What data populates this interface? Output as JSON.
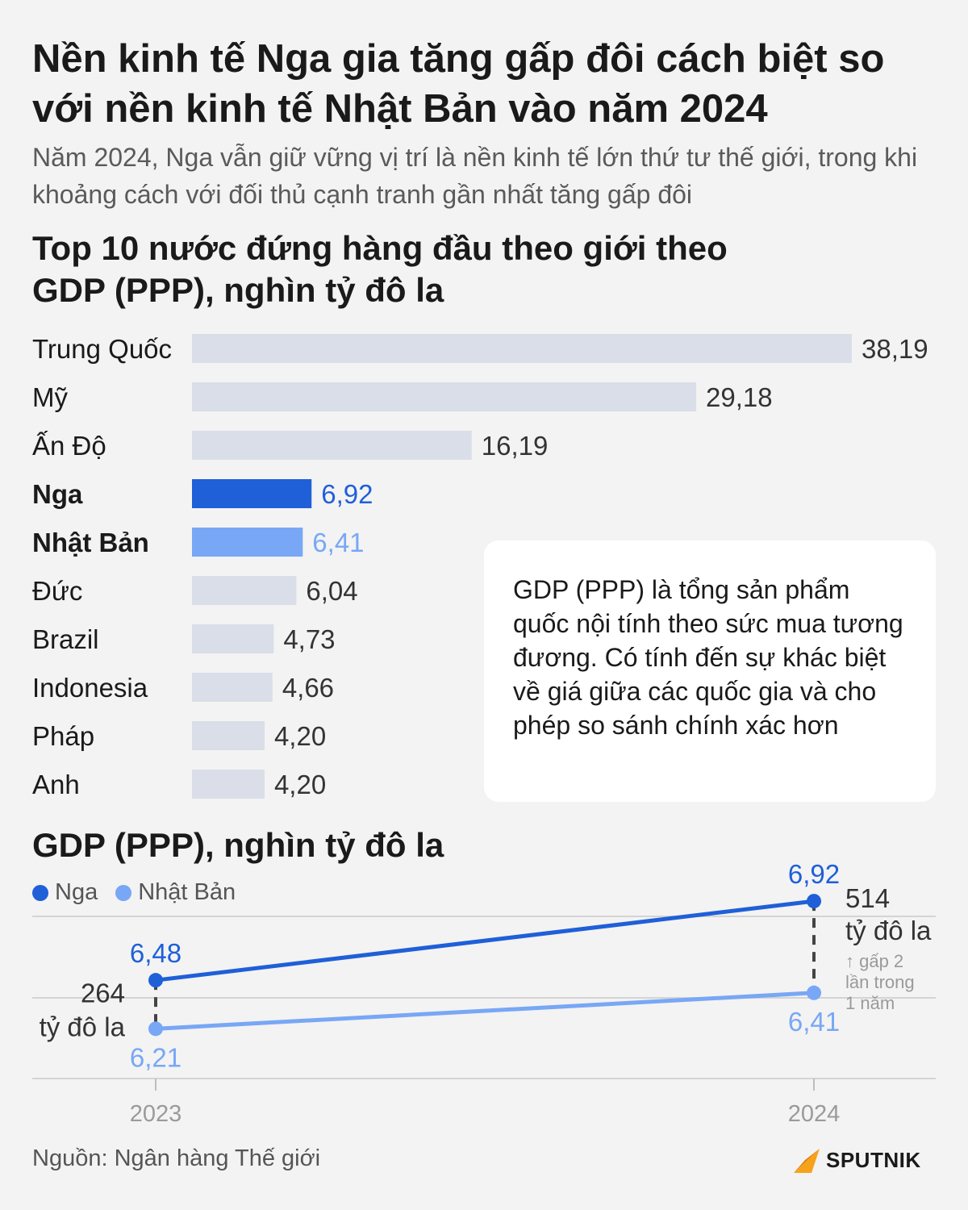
{
  "title": "Nền kinh tế Nga gia tăng gấp đôi cách biệt so với nền kinh tế Nhật Bản vào năm 2024",
  "subtitle": "Năm 2024, Nga vẫn giữ vững vị trí là nền kinh tế lớn thứ tư thế giới, trong khi khoảng cách với đối thủ cạnh tranh gần nhất tăng gấp đôi",
  "info_box": "GDP (PPP) là tổng sản phẩm quốc nội tính theo sức mua tương đương. Có tính đến sự khác biệt về giá giữa các quốc gia và cho phép so sánh chính xác hơn",
  "source": "Nguồn: Ngân hàng Thế giới",
  "logo_text": "SPUTNIK",
  "colors": {
    "russia": "#1f5fd8",
    "japan": "#78a7f5",
    "other": "#d9dee8",
    "accent_logo": "#f7a21b"
  },
  "chart_data": [
    {
      "type": "bar",
      "title": "Top 10 nước đứng hàng đầu theo giới theo GDP (PPP), nghìn tỷ đô la",
      "categories": [
        "Trung Quốc",
        "Mỹ",
        "Ấn Độ",
        "Nga",
        "Nhật Bản",
        "Đức",
        "Brazil",
        "Indonesia",
        "Pháp",
        "Anh"
      ],
      "values": [
        38.19,
        29.18,
        16.19,
        6.92,
        6.41,
        6.04,
        4.73,
        4.66,
        4.2,
        4.2
      ],
      "value_labels": [
        "38,19",
        "29,18",
        "16,19",
        "6,92",
        "6,41",
        "6,04",
        "4,73",
        "4,66",
        "4,20",
        "4,20"
      ],
      "highlight": {
        "Nga": "russia",
        "Nhật Bản": "japan"
      },
      "orientation": "horizontal"
    },
    {
      "type": "line",
      "title": "GDP (PPP), nghìn tỷ đô la",
      "x": [
        "2023",
        "2024"
      ],
      "ylim": [
        5.7,
        7.1
      ],
      "series": [
        {
          "name": "Nga",
          "values": [
            6.48,
            6.92
          ],
          "labels": [
            "6,48",
            "6,92"
          ],
          "color_key": "russia"
        },
        {
          "name": "Nhật Bản",
          "values": [
            6.21,
            6.41
          ],
          "labels": [
            "6,21",
            "6,41"
          ],
          "color_key": "japan"
        }
      ],
      "annotations": {
        "gap_2023": [
          "264",
          "tỷ đô la"
        ],
        "gap_2024": [
          "514",
          "tỷ đô la"
        ],
        "gap_note": [
          "↑ gấp 2",
          "lần trong",
          "1 năm"
        ]
      },
      "legend_position": "top-left"
    }
  ]
}
